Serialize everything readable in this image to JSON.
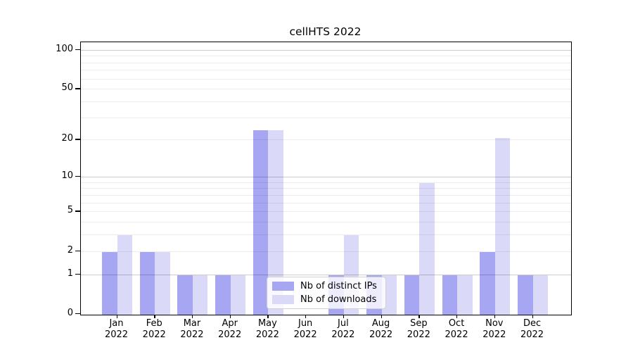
{
  "chart_data": {
    "type": "bar",
    "title": "cellHTS 2022",
    "year": "2022",
    "categories": [
      "Jan",
      "Feb",
      "Mar",
      "Apr",
      "May",
      "Jun",
      "Jul",
      "Aug",
      "Sep",
      "Oct",
      "Nov",
      "Dec"
    ],
    "series": [
      {
        "name": "Nb of distinct IPs",
        "color": "#a6a6f2",
        "values": [
          2,
          2,
          1,
          1,
          24,
          0,
          1,
          1,
          1,
          1,
          2,
          1
        ]
      },
      {
        "name": "Nb of downloads",
        "color": "#dadaf8",
        "values": [
          3,
          2,
          1,
          1,
          24,
          0,
          3,
          1,
          9,
          1,
          21,
          1
        ]
      }
    ],
    "xlabel": "",
    "ylabel": "",
    "scale": "log1p",
    "ylim": [
      0,
      115
    ],
    "y_ticks": [
      0,
      1,
      2,
      5,
      10,
      20,
      50,
      100
    ],
    "grid": {
      "on": true,
      "major_values": [
        1,
        10,
        100
      ],
      "minor_values": [
        2,
        3,
        4,
        5,
        6,
        7,
        8,
        9,
        20,
        30,
        40,
        50,
        60,
        70,
        80,
        90
      ]
    },
    "legend_position": "inside-bottom-center"
  }
}
